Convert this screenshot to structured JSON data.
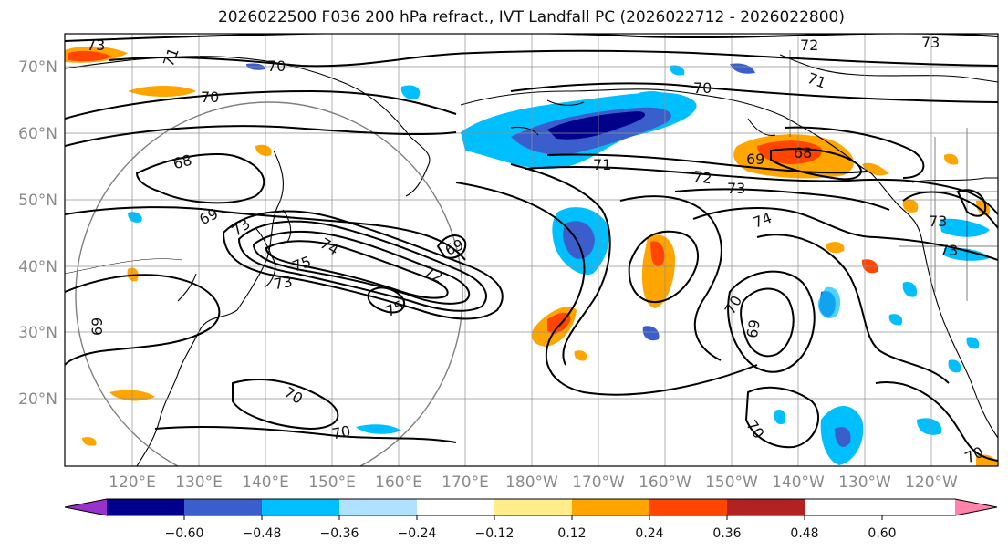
{
  "title": "2026022500 F036 200 hPa refract., IVT Landfall PC (2026022712 - 2026022800)",
  "latitude_labels": [
    "70°N",
    "60°N",
    "50°N",
    "40°N",
    "30°N",
    "20°N"
  ],
  "longitude_labels": [
    "120°E",
    "130°E",
    "140°E",
    "150°E",
    "160°E",
    "170°E",
    "180°W",
    "170°W",
    "160°W",
    "150°W",
    "140°W",
    "130°W",
    "120°W"
  ],
  "colorbar": {
    "tick_labels": [
      "−0.60",
      "−0.48",
      "−0.36",
      "−0.24",
      "−0.12",
      "0.12",
      "0.24",
      "0.36",
      "0.48",
      "0.60"
    ],
    "colors": [
      "#9932cc",
      "#00008b",
      "#3a5fcd",
      "#00bfff",
      "#b0e2ff",
      "#ffffff",
      "#ffec8b",
      "#ffa500",
      "#ff4500",
      "#b22222",
      "#ff82ab"
    ]
  },
  "contour_labels": [
    "73",
    "71",
    "70",
    "70",
    "72",
    "73",
    "70",
    "71",
    "68",
    "69",
    "68",
    "71",
    "72",
    "73",
    "74",
    "69",
    "73",
    "75",
    "74",
    "69",
    "72",
    "73",
    "75",
    "69",
    "70",
    "69",
    "70",
    "70",
    "70",
    "73",
    "73",
    "70"
  ]
}
